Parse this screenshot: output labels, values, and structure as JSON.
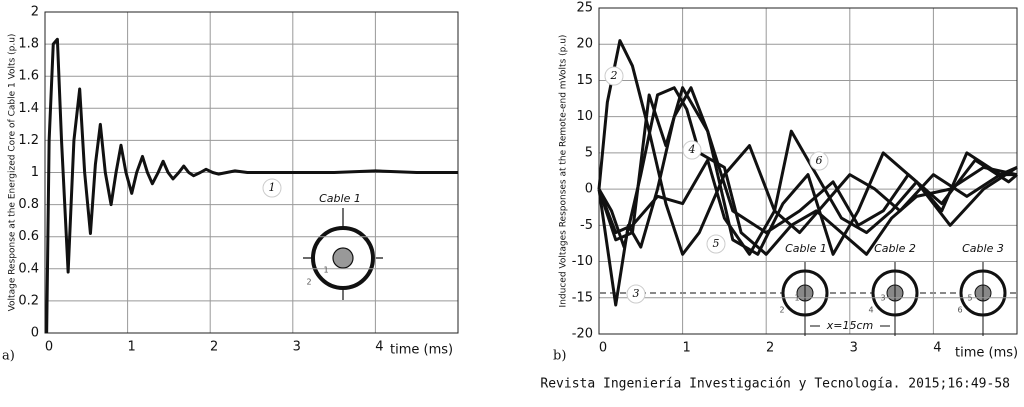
{
  "chart_data": [
    {
      "type": "line",
      "panel": "a)",
      "xlabel": "time (ms)",
      "ylabel": "Voltage Response at the Energized Core of Cable 1 Volts (p.u)",
      "xlim": [
        0,
        5
      ],
      "ylim": [
        0,
        2
      ],
      "xticks": [
        0,
        1,
        2,
        3,
        4
      ],
      "yticks": [
        0,
        0.2,
        0.4,
        0.6,
        0.8,
        1,
        1.2,
        1.4,
        1.6,
        1.8,
        2
      ],
      "grid": true,
      "series": [
        {
          "color": "#111111",
          "x": [
            0.02,
            0.05,
            0.1,
            0.15,
            0.2,
            0.28,
            0.35,
            0.42,
            0.48,
            0.55,
            0.61,
            0.67,
            0.73,
            0.8,
            0.86,
            0.92,
            0.98,
            1.05,
            1.11,
            1.18,
            1.24,
            1.3,
            1.37,
            1.43,
            1.49,
            1.55,
            1.62,
            1.68,
            1.74,
            1.8,
            1.88,
            1.95,
            2.03,
            2.1,
            2.2,
            2.3,
            2.45,
            2.6,
            3.0,
            3.5,
            4.0,
            4.5,
            5.0
          ],
          "values": [
            0,
            1.2,
            1.8,
            1.83,
            1.2,
            0.38,
            1.2,
            1.52,
            1.0,
            0.62,
            1.05,
            1.3,
            1.0,
            0.8,
            1.0,
            1.17,
            1.0,
            0.87,
            1.0,
            1.1,
            1.0,
            0.93,
            1.0,
            1.07,
            1.0,
            0.96,
            1.0,
            1.04,
            1.0,
            0.98,
            1.0,
            1.02,
            1.0,
            0.99,
            1.0,
            1.01,
            1.0,
            1.0,
            1.0,
            1.0,
            1.01,
            1.0,
            1.0
          ]
        }
      ],
      "annotations": [
        "1",
        "Cable 1",
        "2",
        "1"
      ]
    },
    {
      "type": "line",
      "panel": "b)",
      "xlabel": "time (ms)",
      "ylabel": "Induced Voltages Responses at the Remote-end mVolts (p.u)",
      "xlim": [
        0,
        5
      ],
      "ylim": [
        -20,
        25
      ],
      "xticks": [
        0,
        1,
        2,
        3,
        4
      ],
      "yticks": [
        -20,
        -15,
        -10,
        -5,
        0,
        5,
        10,
        15,
        20,
        25
      ],
      "grid": true,
      "series": [
        {
          "color": "#111111",
          "x": [
            0,
            0.1,
            0.25,
            0.4,
            0.6,
            0.8,
            1.0,
            1.2,
            1.5,
            1.8,
            2.1,
            2.4,
            2.7,
            3.0,
            3.3,
            3.6,
            4.0,
            4.4,
            4.8,
            5.0
          ],
          "values": [
            0,
            12,
            20.5,
            17,
            8,
            -2,
            -9,
            -6,
            2,
            6,
            -3,
            -6,
            -2,
            2,
            0,
            -3,
            2,
            -1,
            2,
            2
          ]
        },
        {
          "color": "#111111",
          "x": [
            0,
            0.1,
            0.2,
            0.35,
            0.5,
            0.7,
            0.9,
            1.1,
            1.3,
            1.6,
            2.0,
            2.4,
            2.8,
            3.1,
            3.4,
            3.7,
            4.1,
            4.5,
            4.9,
            5.0
          ],
          "values": [
            0,
            -8,
            -16,
            -5,
            -8,
            0,
            10,
            14,
            8,
            -3,
            -6,
            -3,
            1,
            -5,
            -3,
            2,
            -2,
            4,
            1,
            2
          ]
        },
        {
          "color": "#111111",
          "x": [
            0,
            0.15,
            0.3,
            0.5,
            0.7,
            0.9,
            1.05,
            1.2,
            1.5,
            1.7,
            2.0,
            2.3,
            2.6,
            2.9,
            3.2,
            3.5,
            3.8,
            4.2,
            4.6,
            5.0
          ],
          "values": [
            0,
            -3,
            -8,
            2,
            13,
            14,
            11,
            5,
            3,
            -6,
            -9,
            -5,
            -3,
            -6,
            -9,
            -4,
            -1,
            0,
            3,
            2
          ]
        },
        {
          "color": "#111111",
          "x": [
            0,
            0.2,
            0.4,
            0.6,
            0.8,
            1.0,
            1.3,
            1.6,
            1.9,
            2.2,
            2.5,
            2.8,
            3.1,
            3.4,
            3.8,
            4.2,
            4.6,
            5.0
          ],
          "values": [
            0,
            -7,
            -6,
            13,
            6,
            14,
            8,
            -7,
            -9,
            -2,
            2,
            -9,
            -3,
            5,
            1,
            -5,
            0,
            3
          ]
        },
        {
          "color": "#111111",
          "x": [
            0,
            0.2,
            0.4,
            0.7,
            1.0,
            1.3,
            1.5,
            1.8,
            2.1,
            2.3,
            2.6,
            2.9,
            3.2,
            3.5,
            3.8,
            4.1,
            4.4,
            4.8,
            5.0
          ],
          "values": [
            0,
            -6,
            -5,
            -1,
            -2,
            4,
            -4,
            -9,
            -3,
            8,
            2,
            -4,
            -6,
            -3,
            1,
            -3,
            5,
            2,
            3
          ]
        }
      ],
      "annotations": [
        "2",
        "3",
        "4",
        "5",
        "6",
        "Cable 1",
        "Cable 2",
        "Cable 3",
        "1",
        "2",
        "3",
        "4",
        "5",
        "6",
        "x=15cm"
      ]
    }
  ],
  "caption": "Revista Ingeniería Investigación y Tecnología. 2015;16:49-58"
}
